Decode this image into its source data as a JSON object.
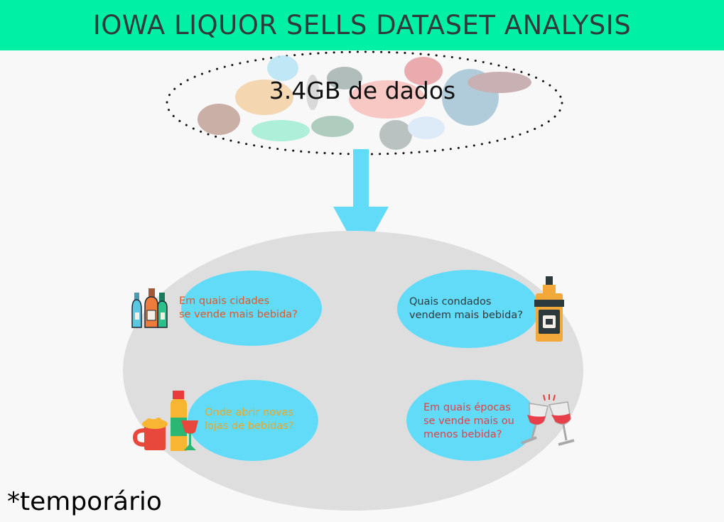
{
  "header": {
    "title": "IOWA LIQUOR SELLS DATASET ANALYSIS"
  },
  "data_cloud": {
    "label": "3.4GB de dados"
  },
  "questions": [
    {
      "text_line1": "Em quais cidades",
      "text_line2": "se vende mais bebida?",
      "color": "#e0562a",
      "icon": "liquor-bottles-icon"
    },
    {
      "text_line1": "Quais condados",
      "text_line2": "vendem mais bebida?",
      "color": "#2f3a3c",
      "icon": "whiskey-bottle-icon"
    },
    {
      "text_line1": "Onde abrir novas",
      "text_line2": "lojas de bebidas?",
      "color": "#f2a51a",
      "icon": "beer-wine-icon"
    },
    {
      "text_line1": "Em quais épocas",
      "text_line2": "se vende mais ou",
      "text_line3": "menos bebida?",
      "color": "#e0404a",
      "icon": "wine-toast-icon"
    }
  ],
  "footnote": "*temporário",
  "colors": {
    "header_bg": "#00f0a6",
    "arrow": "#62dbf9",
    "question_bubble": "#62dbf9",
    "base_ellipse": "#dedede"
  }
}
